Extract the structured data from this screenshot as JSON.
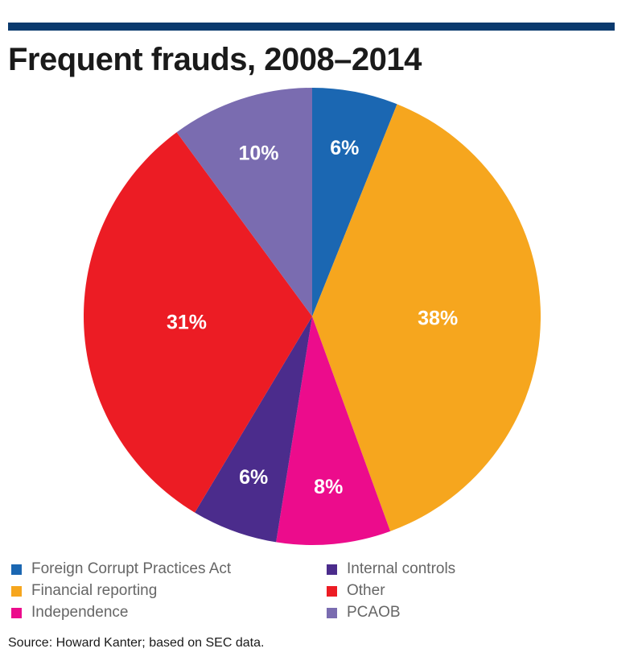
{
  "chart_data": {
    "type": "pie",
    "title": "Frequent frauds, 2008–2014",
    "slices": [
      {
        "label": "Foreign Corrupt Practices Act",
        "value": 6,
        "value_label": "6%",
        "color": "#1b67b2"
      },
      {
        "label": "Financial reporting",
        "value": 38,
        "value_label": "38%",
        "color": "#f6a61e"
      },
      {
        "label": "Independence",
        "value": 8,
        "value_label": "8%",
        "color": "#ec0c8c"
      },
      {
        "label": "Internal controls",
        "value": 6,
        "value_label": "6%",
        "color": "#4b2c8c"
      },
      {
        "label": "Other",
        "value": 31,
        "value_label": "31%",
        "color": "#ec1c24"
      },
      {
        "label": "PCAOB",
        "value": 10,
        "value_label": "10%",
        "color": "#7a6cb0"
      }
    ],
    "legend_placement": "bottom"
  },
  "source": "Source: Howard Kanter; based on SEC data.",
  "colors": {
    "top_rule": "#0b3a6e",
    "slice_label": "#ffffff"
  }
}
